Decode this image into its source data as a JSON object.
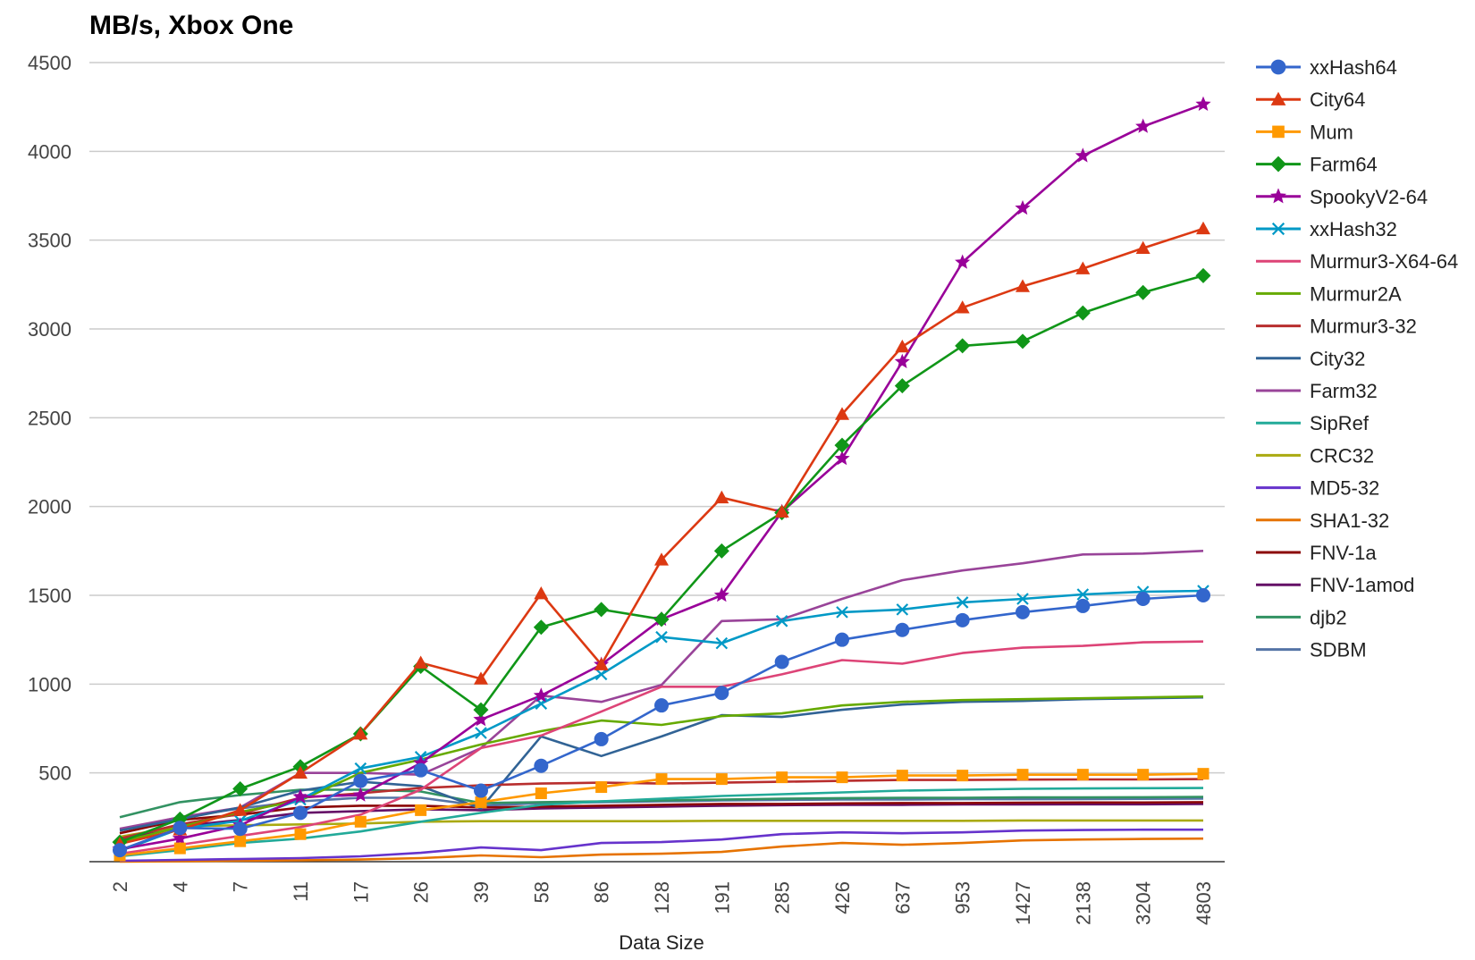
{
  "chart_data": {
    "type": "line",
    "title": "MB/s, Xbox One",
    "xlabel": "Data Size",
    "ylabel": "",
    "ylim": [
      0,
      4500
    ],
    "yticks": [
      500,
      1000,
      1500,
      2000,
      2500,
      3000,
      3500,
      4000,
      4500
    ],
    "grid": true,
    "legend_position": "right",
    "categories": [
      "2",
      "4",
      "7",
      "11",
      "17",
      "26",
      "39",
      "58",
      "86",
      "128",
      "191",
      "285",
      "426",
      "637",
      "953",
      "1427",
      "2138",
      "3204",
      "4803"
    ],
    "series": [
      {
        "name": "xxHash64",
        "color": "#3366cc",
        "marker": "circle",
        "values": [
          65,
          190,
          185,
          275,
          455,
          515,
          400,
          540,
          690,
          880,
          950,
          1125,
          1250,
          1305,
          1360,
          1405,
          1440,
          1480,
          1500
        ]
      },
      {
        "name": "City64",
        "color": "#dc3912",
        "marker": "triangle",
        "values": [
          100,
          180,
          290,
          500,
          720,
          1120,
          1030,
          1510,
          1110,
          1700,
          2050,
          1970,
          2520,
          2900,
          3120,
          3240,
          3340,
          3455,
          3565
        ]
      },
      {
        "name": "Mum",
        "color": "#ff9900",
        "marker": "square",
        "values": [
          35,
          75,
          115,
          155,
          225,
          290,
          335,
          385,
          420,
          465,
          465,
          475,
          475,
          485,
          485,
          490,
          490,
          490,
          495
        ]
      },
      {
        "name": "Farm64",
        "color": "#109618",
        "marker": "diamond",
        "values": [
          110,
          240,
          410,
          535,
          720,
          1100,
          855,
          1320,
          1420,
          1365,
          1750,
          1965,
          2345,
          2680,
          2905,
          2930,
          3090,
          3205,
          3300
        ]
      },
      {
        "name": "SpookyV2-64",
        "color": "#990099",
        "marker": "star",
        "values": [
          70,
          130,
          205,
          365,
          375,
          555,
          800,
          935,
          1110,
          1365,
          1500,
          1970,
          2270,
          2815,
          3375,
          3680,
          3975,
          4140,
          4265
        ]
      },
      {
        "name": "xxHash32",
        "color": "#0099c6",
        "marker": "x",
        "values": [
          60,
          185,
          230,
          350,
          525,
          590,
          725,
          890,
          1055,
          1265,
          1230,
          1355,
          1405,
          1420,
          1460,
          1480,
          1505,
          1520,
          1525
        ]
      },
      {
        "name": "Murmur3-X64-64",
        "color": "#dd4477",
        "marker": "none",
        "values": [
          45,
          95,
          145,
          195,
          265,
          405,
          640,
          710,
          845,
          985,
          985,
          1055,
          1135,
          1115,
          1175,
          1205,
          1215,
          1235,
          1240
        ]
      },
      {
        "name": "Murmur2A",
        "color": "#66aa00",
        "marker": "none",
        "values": [
          110,
          195,
          280,
          345,
          500,
          575,
          660,
          735,
          795,
          770,
          820,
          835,
          880,
          900,
          910,
          915,
          920,
          925,
          930
        ]
      },
      {
        "name": "Murmur3-32",
        "color": "#b82e2e",
        "marker": "none",
        "values": [
          130,
          210,
          270,
          360,
          385,
          415,
          430,
          440,
          445,
          440,
          445,
          450,
          455,
          460,
          460,
          462,
          463,
          463,
          465
        ]
      },
      {
        "name": "City32",
        "color": "#316395",
        "marker": "none",
        "values": [
          175,
          240,
          305,
          400,
          450,
          425,
          300,
          705,
          595,
          705,
          825,
          815,
          855,
          885,
          900,
          905,
          915,
          920,
          925
        ]
      },
      {
        "name": "Farm32",
        "color": "#994499",
        "marker": "none",
        "values": [
          185,
          250,
          305,
          500,
          500,
          490,
          640,
          935,
          900,
          995,
          1355,
          1365,
          1480,
          1585,
          1640,
          1680,
          1730,
          1735,
          1750
        ]
      },
      {
        "name": "SipRef",
        "color": "#22aa99",
        "marker": "none",
        "values": [
          30,
          65,
          105,
          130,
          170,
          225,
          275,
          320,
          340,
          355,
          370,
          380,
          390,
          400,
          405,
          410,
          412,
          414,
          415
        ]
      },
      {
        "name": "CRC32",
        "color": "#aaaa11",
        "marker": "none",
        "values": [
          140,
          200,
          205,
          210,
          215,
          225,
          228,
          228,
          228,
          228,
          230,
          230,
          230,
          230,
          230,
          232,
          232,
          232,
          232
        ]
      },
      {
        "name": "MD5-32",
        "color": "#6633cc",
        "marker": "none",
        "values": [
          5,
          10,
          15,
          20,
          30,
          50,
          80,
          65,
          105,
          110,
          125,
          155,
          165,
          160,
          165,
          175,
          178,
          180,
          180
        ]
      },
      {
        "name": "SHA1-32",
        "color": "#e67300",
        "marker": "none",
        "values": [
          0,
          2,
          5,
          8,
          12,
          20,
          35,
          25,
          40,
          45,
          55,
          85,
          105,
          95,
          105,
          120,
          125,
          128,
          130
        ]
      },
      {
        "name": "FNV-1a",
        "color": "#8b0707",
        "marker": "none",
        "values": [
          160,
          235,
          265,
          305,
          315,
          315,
          305,
          310,
          315,
          320,
          325,
          325,
          328,
          330,
          330,
          332,
          333,
          333,
          335
        ]
      },
      {
        "name": "FNV-1amod",
        "color": "#651067",
        "marker": "none",
        "values": [
          120,
          200,
          235,
          275,
          285,
          295,
          290,
          300,
          305,
          310,
          315,
          318,
          320,
          320,
          322,
          322,
          323,
          323,
          325
        ]
      },
      {
        "name": "djb2",
        "color": "#329262",
        "marker": "none",
        "values": [
          250,
          335,
          375,
          405,
          405,
          395,
          330,
          335,
          340,
          345,
          350,
          355,
          358,
          360,
          360,
          362,
          362,
          363,
          365
        ]
      },
      {
        "name": "SDBM",
        "color": "#5574a6",
        "marker": "none",
        "values": [
          180,
          250,
          300,
          340,
          360,
          360,
          315,
          330,
          335,
          340,
          345,
          348,
          350,
          350,
          352,
          352,
          353,
          354,
          355
        ]
      }
    ]
  }
}
